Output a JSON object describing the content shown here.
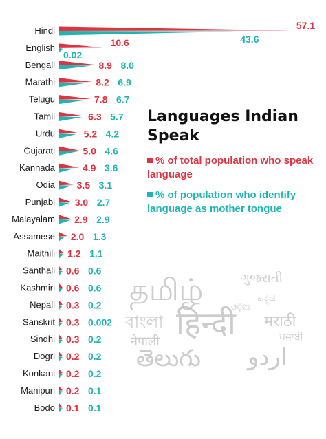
{
  "chart_data": {
    "type": "bar",
    "title": "Languages Indian Speak",
    "categories": [
      "Hindi",
      "English",
      "Bengali",
      "Marathi",
      "Telugu",
      "Tamil",
      "Urdu",
      "Gujarati",
      "Kannada",
      "Odia",
      "Punjabi",
      "Malayalam",
      "Assamese",
      "Maithili",
      "Santhali",
      "Kashmiri",
      "Nepali",
      "Sanskrit",
      "Sindhi",
      "Dogri",
      "Konkani",
      "Manipuri",
      "Bodo"
    ],
    "series": [
      {
        "name": "% of total population who speak language",
        "color": "#e0323f",
        "values": [
          57.1,
          10.6,
          8.9,
          8.2,
          7.8,
          6.3,
          5.2,
          5.0,
          4.9,
          3.5,
          3.0,
          2.9,
          2.0,
          1.2,
          0.6,
          0.6,
          0.3,
          0.3,
          0.3,
          0.2,
          0.2,
          0.2,
          0.1
        ],
        "labels": [
          "57.1",
          "10.6",
          "8.9",
          "8.2",
          "7.8",
          "6.3",
          "5.2",
          "5.0",
          "4.9",
          "3.5",
          "3.0",
          "2.9",
          "2.0",
          "1.2",
          "0.6",
          "0.6",
          "0.3",
          "0.3",
          "0.3",
          "0.2",
          "0.2",
          "0.2",
          "0.1"
        ]
      },
      {
        "name": "% of population who identify language as mother tongue",
        "color": "#1fb5b5",
        "values": [
          43.6,
          0.02,
          8.0,
          6.9,
          6.7,
          5.7,
          4.2,
          4.6,
          3.6,
          3.1,
          2.7,
          2.9,
          1.3,
          1.1,
          0.6,
          0.6,
          0.2,
          0.002,
          0.2,
          0.2,
          0.2,
          0.1,
          0.1
        ],
        "labels": [
          "43.6",
          "0.02",
          "8.0",
          "6.9",
          "6.7",
          "5.7",
          "4.2",
          "4.6",
          "3.6",
          "3.1",
          "2.7",
          "2.9",
          "1.3",
          "1.1",
          "0.6",
          "0.6",
          "0.2",
          "0.002",
          "0.2",
          "0.2",
          "0.2",
          "0.1",
          "0.1"
        ]
      }
    ],
    "legend": {
      "placement": "right",
      "items": [
        "% of total population who speak language",
        "% of population who identify language as mother tongue"
      ]
    },
    "grid": false
  },
  "watermark": {
    "words": [
      "தமிழ்",
      "ગુજરાતી",
      "ಕನ್ನಡ",
      "বাংলা",
      "हिन्दी",
      "मराठी",
      "ਪੰਜਾਬੀ",
      "नेपाली",
      "తెలుగు",
      "اردو",
      "ଓଡ଼ିଆ"
    ],
    "color": "#bcbcbc"
  }
}
